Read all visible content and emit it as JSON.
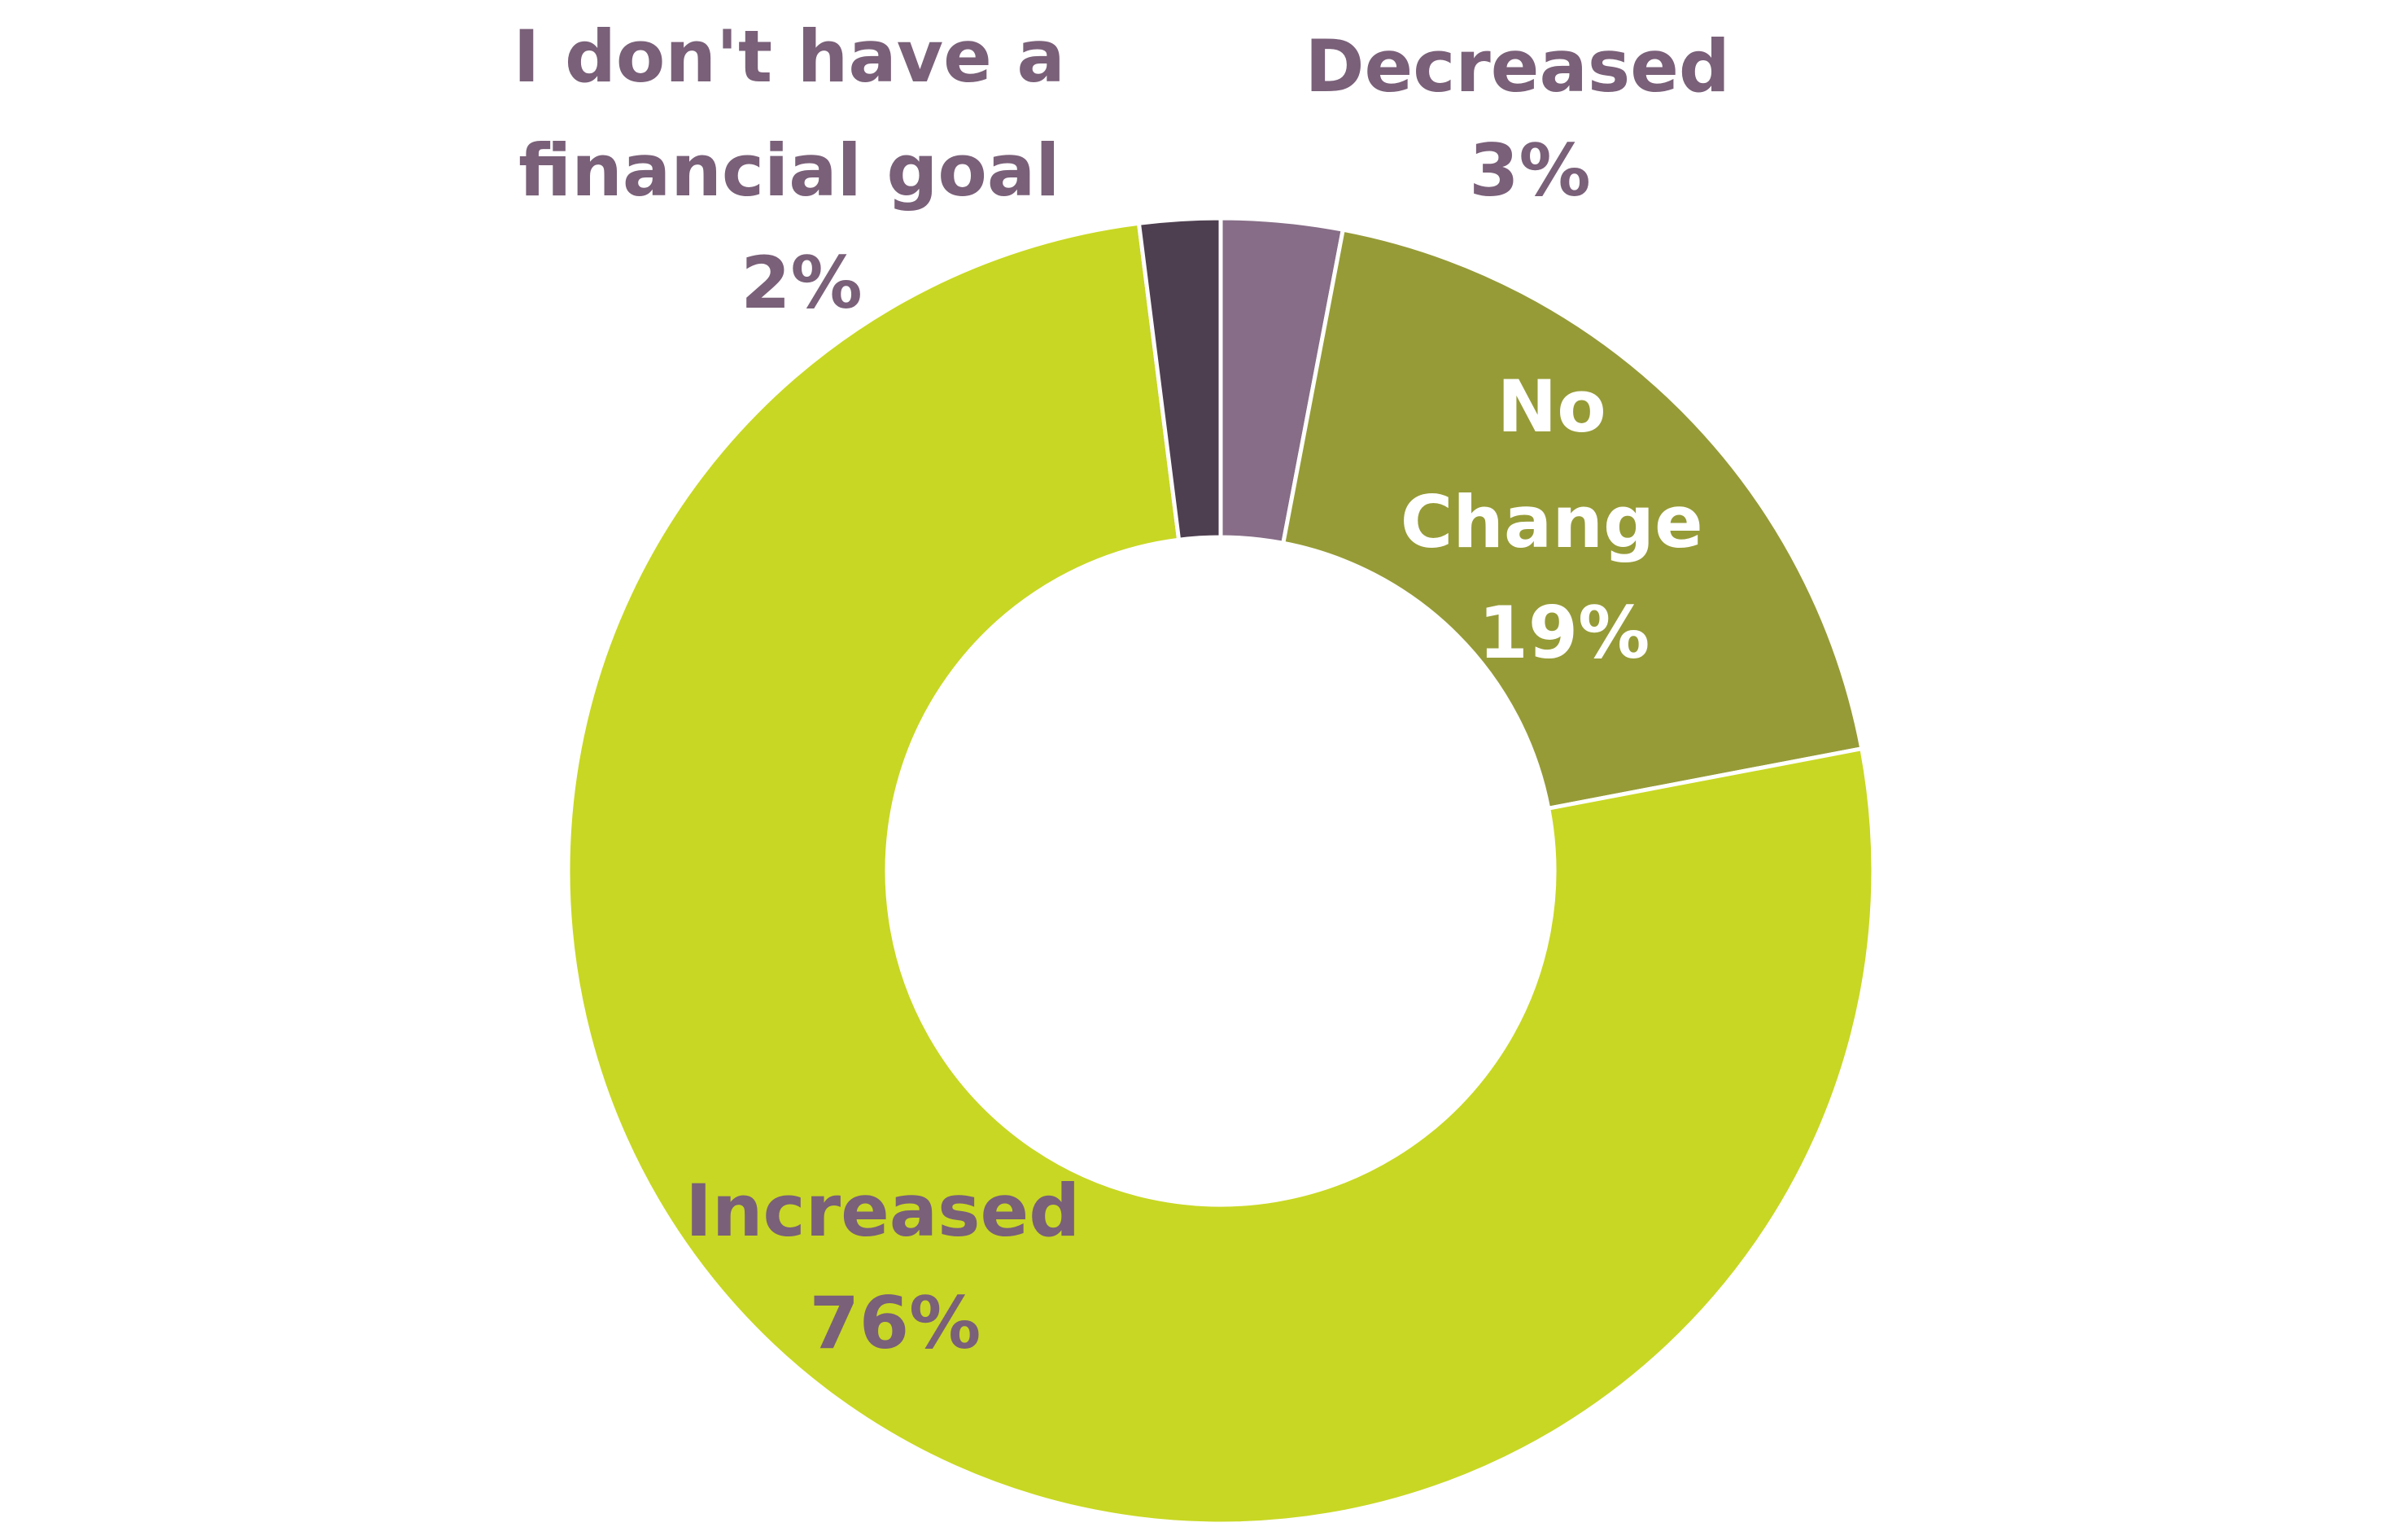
{
  "chart_data": {
    "type": "pie",
    "variant": "donut",
    "title": "",
    "slices": [
      {
        "label": "Decreased",
        "value": 3,
        "value_label": "3%",
        "color": "#876d87",
        "label_color": "#7a6079"
      },
      {
        "label": "No Change",
        "value": 19,
        "value_label": "19%",
        "color": "#969b37",
        "label_color": "#ffffff"
      },
      {
        "label": "Increased",
        "value": 76,
        "value_label": "76%",
        "color": "#c8d723",
        "label_color": "#7a6079"
      },
      {
        "label": "I don't have a financial goal",
        "value": 2,
        "value_label": "2%",
        "color": "#4e3f50",
        "label_color": "#7a6079"
      }
    ],
    "legend": "none",
    "start_angle": "top, clockwise"
  }
}
